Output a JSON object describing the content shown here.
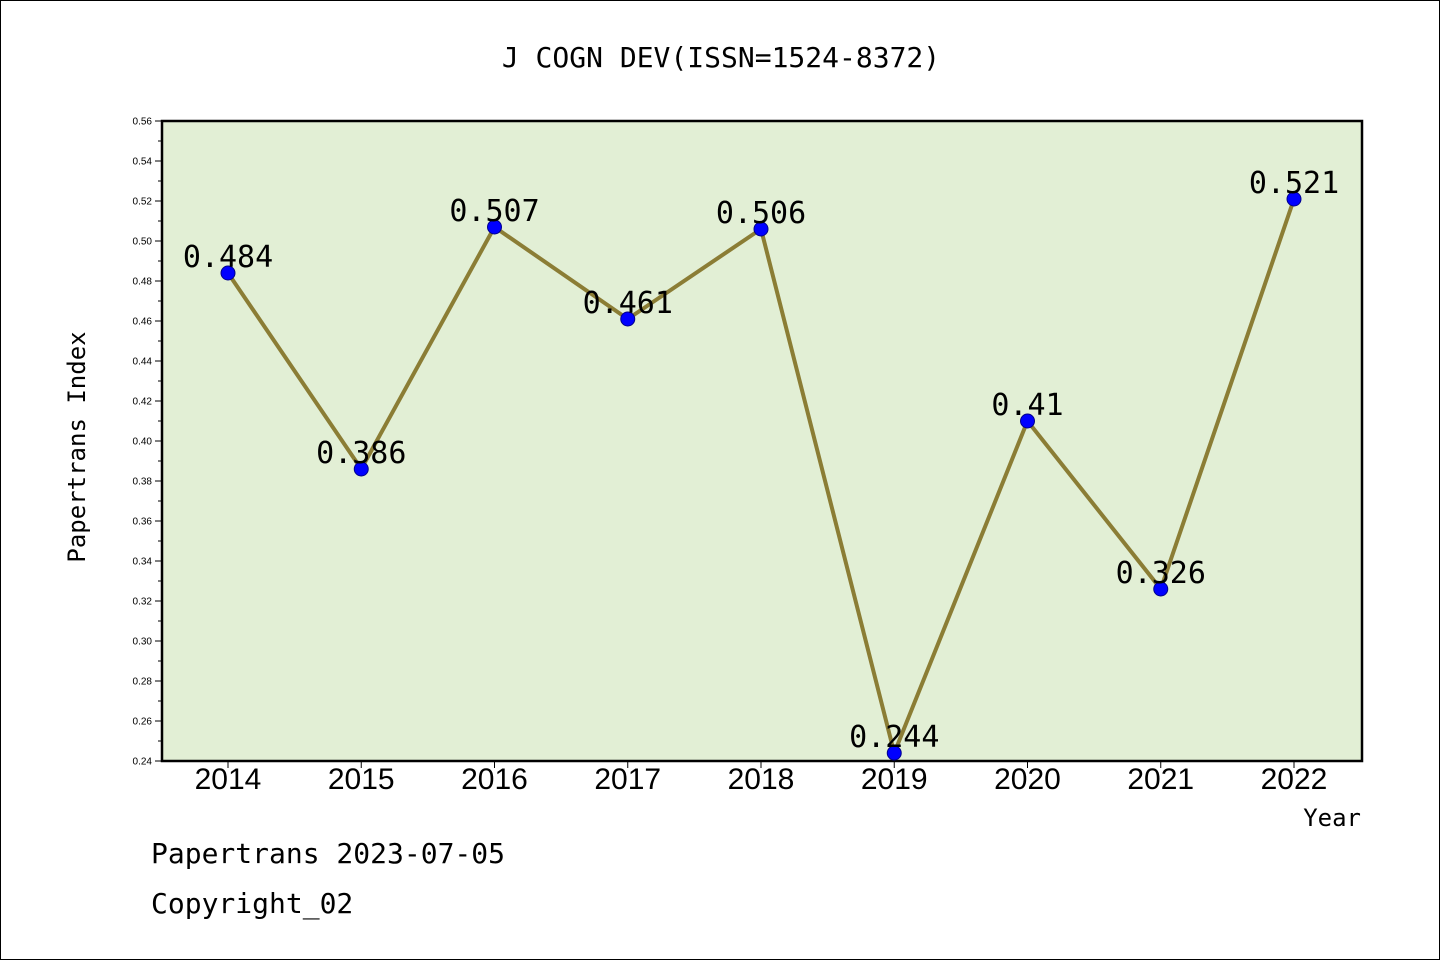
{
  "footer": {
    "line1": "Papertrans 2023-07-05",
    "line2": "Copyright_02"
  },
  "colors": {
    "plot_background": "#e2efd5",
    "line": "#8b7d35",
    "marker": "#0000ff"
  },
  "chart_data": {
    "type": "line",
    "title": "J COGN DEV(ISSN=1524-8372)",
    "xlabel": "Year",
    "ylabel": "Papertrans Index",
    "categories": [
      "2014",
      "2015",
      "2016",
      "2017",
      "2018",
      "2019",
      "2020",
      "2021",
      "2022"
    ],
    "series": [
      {
        "values": [
          0.484,
          0.386,
          0.507,
          0.461,
          0.506,
          0.244,
          0.41,
          0.326,
          0.521
        ],
        "labels": [
          "0.484",
          "0.386",
          "0.507",
          "0.461",
          "0.506",
          "0.244",
          "0.41",
          "0.326",
          "0.521"
        ]
      }
    ],
    "ylim": [
      0.24,
      0.56
    ],
    "yticks": [
      "0.24",
      "0.26",
      "0.28",
      "0.30",
      "0.32",
      "0.34",
      "0.36",
      "0.38",
      "0.40",
      "0.42",
      "0.44",
      "0.46",
      "0.48",
      "0.50",
      "0.52",
      "0.54",
      "0.56"
    ],
    "grid": false,
    "legend": "none"
  }
}
